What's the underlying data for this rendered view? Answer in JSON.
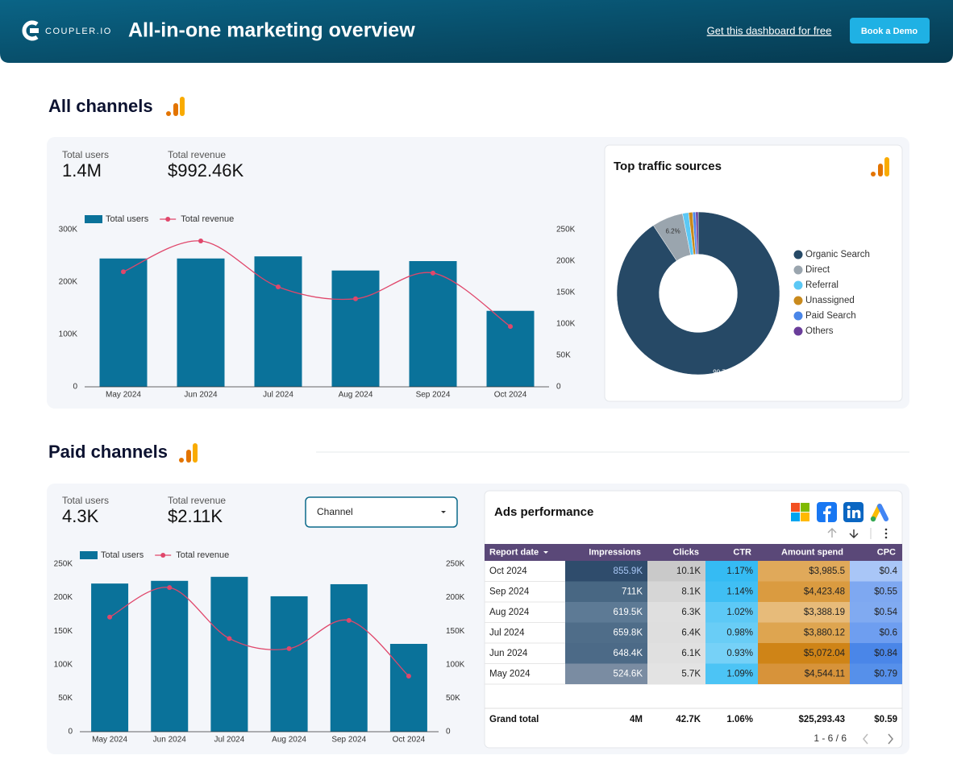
{
  "header": {
    "logo": "COUPLER.IO",
    "title": "All-in-one marketing overview",
    "link": "Get this dashboard for free",
    "button": "Book a Demo"
  },
  "sections": [
    {
      "title": "All channels",
      "kpis": [
        {
          "label": "Total users",
          "value": "1.4M"
        },
        {
          "label": "Total revenue",
          "value": "$992.46K"
        }
      ]
    },
    {
      "title": "Paid channels",
      "kpis": [
        {
          "label": "Total users",
          "value": "4.3K"
        },
        {
          "label": "Total revenue",
          "value": "$2.11K"
        }
      ],
      "filter": "Channel"
    }
  ],
  "chart_data": [
    {
      "type": "combo",
      "categories": [
        "May 2024",
        "Jun 2024",
        "Jul 2024",
        "Aug 2024",
        "Sep 2024",
        "Oct 2024"
      ],
      "series": [
        {
          "name": "Total users",
          "type": "bar",
          "color": "#0a729a",
          "values": [
            245000,
            245000,
            249000,
            222000,
            240000,
            145000
          ]
        },
        {
          "name": "Total revenue",
          "type": "line",
          "axis": "y2",
          "color": "#e0476b",
          "values": [
            183000,
            232000,
            159000,
            140000,
            181000,
            96000
          ]
        }
      ],
      "ylim": [
        0,
        300000
      ],
      "yticks": [
        0,
        {
          "value": 100000,
          "label": "100K"
        },
        {
          "value": 200000,
          "label": "200K"
        },
        {
          "value": 300000,
          "label": "300K"
        }
      ],
      "y2lim": [
        0,
        250000
      ],
      "y2ticks": [
        0,
        {
          "value": 50000,
          "label": "50K"
        },
        {
          "value": 100000,
          "label": "100K"
        },
        {
          "value": 150000,
          "label": "150K"
        },
        {
          "value": 200000,
          "label": "200K"
        },
        {
          "value": 250000,
          "label": "250K"
        }
      ],
      "grid": false,
      "legend": "top-left"
    },
    {
      "type": "pie",
      "title": "Top traffic sources",
      "donut": true,
      "categories": [
        "Organic Search",
        "Direct",
        "Referral",
        "Unassigned",
        "Paid Search",
        "Others"
      ],
      "values": [
        90.7,
        6.2,
        1.2,
        0.8,
        0.6,
        0.5
      ],
      "value_labels": [
        "90.7%",
        "6.2%",
        null,
        null,
        null,
        null
      ],
      "colors": [
        "#264966",
        "#9aa5ae",
        "#5bc8f5",
        "#c98a1d",
        "#4a86e8",
        "#6a3d9a"
      ],
      "legend": "right"
    },
    {
      "type": "combo",
      "categories": [
        "May 2024",
        "Jun 2024",
        "Jul 2024",
        "Aug 2024",
        "Sep 2024",
        "Oct 2024"
      ],
      "series": [
        {
          "name": "Total users",
          "type": "bar",
          "color": "#0a729a",
          "values": [
            221000,
            225000,
            231000,
            202000,
            220000,
            131000
          ]
        },
        {
          "name": "Total revenue",
          "type": "line",
          "axis": "y2",
          "color": "#e0476b",
          "values": [
            171000,
            215000,
            139000,
            124000,
            166000,
            83000
          ]
        }
      ],
      "ylim": [
        0,
        250000
      ],
      "yticks": [
        0,
        {
          "value": 50000,
          "label": "50K"
        },
        {
          "value": 100000,
          "label": "100K"
        },
        {
          "value": 150000,
          "label": "150K"
        },
        {
          "value": 200000,
          "label": "200K"
        },
        {
          "value": 250000,
          "label": "250K"
        }
      ],
      "y2lim": [
        0,
        250000
      ],
      "y2ticks": [
        0,
        {
          "value": 50000,
          "label": "50K"
        },
        {
          "value": 100000,
          "label": "100K"
        },
        {
          "value": 150000,
          "label": "150K"
        },
        {
          "value": 200000,
          "label": "200K"
        },
        {
          "value": 250000,
          "label": "250K"
        }
      ],
      "grid": false,
      "legend": "top-left"
    }
  ],
  "table": {
    "title": "Ads performance",
    "columns": [
      "Report date",
      "Impressions",
      "Clicks",
      "CTR",
      "Amount spend",
      "CPC"
    ],
    "rows": [
      [
        "Oct 2024",
        "855.9K",
        "10.1K",
        "1.17%",
        "$3,985.5",
        "$0.4"
      ],
      [
        "Sep 2024",
        "711K",
        "8.1K",
        "1.14%",
        "$4,423.48",
        "$0.55"
      ],
      [
        "Aug 2024",
        "619.5K",
        "6.3K",
        "1.02%",
        "$3,388.19",
        "$0.54"
      ],
      [
        "Jul 2024",
        "659.8K",
        "6.4K",
        "0.98%",
        "$3,880.12",
        "$0.6"
      ],
      [
        "Jun 2024",
        "648.4K",
        "6.1K",
        "0.93%",
        "$5,072.04",
        "$0.84"
      ],
      [
        "May 2024",
        "524.6K",
        "5.7K",
        "1.09%",
        "$4,544.11",
        "$0.79"
      ]
    ],
    "total": [
      "Grand total",
      "4M",
      "42.7K",
      "1.06%",
      "$25,293.43",
      "$0.59"
    ],
    "pagination": "1 - 6 / 6"
  }
}
